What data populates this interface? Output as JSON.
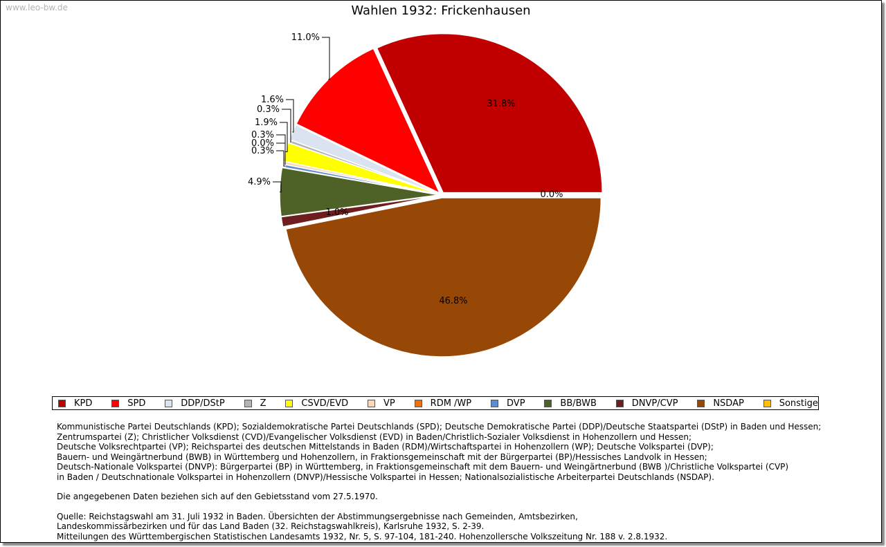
{
  "watermark": "www.leo-bw.de",
  "chart_data": {
    "type": "pie",
    "title": "Wahlen 1932: Frickenhausen",
    "slices": [
      {
        "label": "KPD",
        "value": 31.8,
        "label_text": "31.8%",
        "color": "#c00000"
      },
      {
        "label": "SPD",
        "value": 11.0,
        "label_text": "11.0%",
        "color": "#ff0000"
      },
      {
        "label": "DDP/DStP",
        "value": 1.6,
        "label_text": "1.6%",
        "color": "#dce3f0"
      },
      {
        "label": "Z",
        "value": 0.3,
        "label_text": "0.3%",
        "color": "#b4b4b4"
      },
      {
        "label": "CSVD/EVD",
        "value": 1.9,
        "label_text": "1.9%",
        "color": "#ffff00"
      },
      {
        "label": "VP",
        "value": 0.3,
        "label_text": "0.3%",
        "color": "#ffd8b8"
      },
      {
        "label": "RDM /WP",
        "value": 0.0,
        "label_text": "0.0%",
        "color": "#f07010"
      },
      {
        "label": "DVP",
        "value": 0.3,
        "label_text": "0.3%",
        "color": "#5a8ed0"
      },
      {
        "label": "BB/BWB",
        "value": 4.9,
        "label_text": "4.9%",
        "color": "#4e6228"
      },
      {
        "label": "DNVP/CVP",
        "value": 1.0,
        "label_text": "1.0%",
        "color": "#6e1e1e"
      },
      {
        "label": "NSDAP",
        "value": 46.8,
        "label_text": "46.8%",
        "color": "#984806"
      },
      {
        "label": "Sonstige",
        "value": 0.0,
        "label_text": "0.0%",
        "color": "#ffc000"
      }
    ],
    "legend_position": "bottom"
  },
  "notes": {
    "parties": [
      "Kommunistische Partei Deutschlands (KPD); Sozialdemokratische Partei Deutschlands (SPD); Deutsche Demokratische Partei (DDP)/Deutsche Staatspartei (DStP) in Baden und Hessen;",
      "Zentrumspartei (Z); Christlicher Volksdienst (CVD)/Evangelischer Volksdienst (EVD) in Baden/Christlich-Sozialer Volksdienst in Hohenzollern und Hessen;",
      "Deutsche Volksrechtpartei (VP); Reichspartei des deutschen Mittelstands in Baden (RDM)/Wirtschaftspartei in Hohenzollern (WP); Deutsche Volkspartei (DVP);",
      "Bauern- und Weingärtnerbund (BWB) in Württemberg und Hohenzollern, in Fraktionsgemeinschaft mit der Bürgerpartei (BP)/Hessisches Landvolk in Hessen;",
      "Deutsch-Nationale Volkspartei (DNVP): Bürgerpartei (BP) in Württemberg, in Fraktionsgemeinschaft mit dem Bauern- und Weingärtnerbund (BWB )/Christliche Volkspartei (CVP)",
      "in Baden / Deutschnationale Volkspartei in Hohenzollern (DNVP)/Hessische Volkspartei in Hessen; Nationalsozialistische Arbeiterpartei Deutschlands (NSDAP)."
    ],
    "gebietsstand": "Die angegebenen Daten beziehen sich auf den Gebietsstand vom 27.5.1970.",
    "source": [
      "Quelle: Reichstagswahl am 31. Juli 1932 in Baden. Übersichten der Abstimmungsergebnisse nach Gemeinden, Amtsbezirken,",
      "Landeskommissärbezirken und für das Land Baden (32. Reichstagswahlkreis), Karlsruhe 1932, S. 2-39.",
      "Mitteilungen des Württembergischen Statistischen Landesamts 1932, Nr. 5, S. 97-104, 181-240. Hohenzollersche Volkszeitung Nr. 188 v. 2.8.1932."
    ]
  }
}
